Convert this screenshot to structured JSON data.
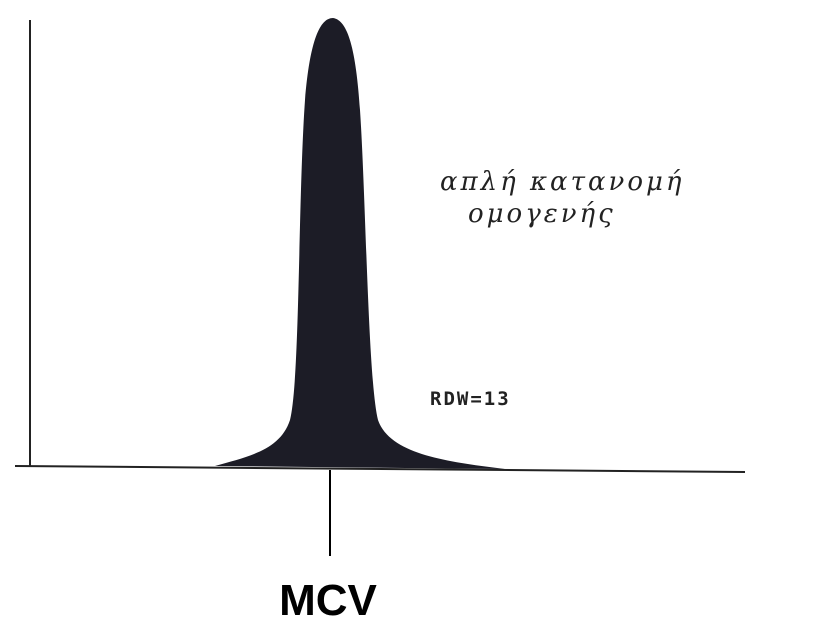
{
  "diagram": {
    "annotation_line1": "απλή κατανομή",
    "annotation_line2": "ομογενής",
    "rdw_label": "RDW=13",
    "x_marker_label": "MCV"
  }
}
